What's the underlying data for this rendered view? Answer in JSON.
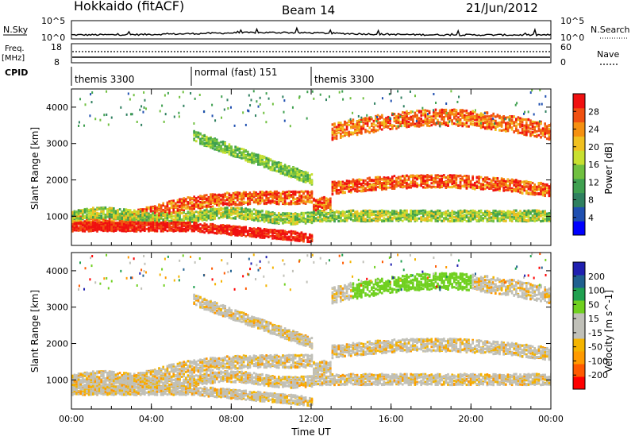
{
  "header": {
    "station": "Hokkaido (fitACF)",
    "beam": "Beam 14",
    "date": "21/Jun/2012"
  },
  "meta_panels": {
    "nsky_label": "N.Sky",
    "nsearch_label": "N.Search",
    "nsky_ticks": [
      "10^5",
      "10^0"
    ],
    "nsky_right_ticks": [
      "10^5",
      "10^0"
    ],
    "freq_label": "Freq.",
    "freq_unit": "[MHz]",
    "freq_ticks": [
      "18",
      "8"
    ],
    "nave_label": "Nave",
    "nave_ticks": [
      "60",
      "0"
    ],
    "cpid_label": "CPID",
    "cpid_segments": [
      {
        "label": "themis 3300",
        "start_hour": 0,
        "end_hour": 6
      },
      {
        "label": "normal (fast) 151",
        "start_hour": 6,
        "end_hour": 12
      },
      {
        "label": "themis 3300",
        "start_hour": 12,
        "end_hour": 24
      }
    ]
  },
  "chart_data": [
    {
      "type": "heatmap",
      "name": "power-panel",
      "ylabel": "Slant Range [km]",
      "xlabel": "",
      "xlim": [
        0,
        24
      ],
      "ylim": [
        200,
        4500
      ],
      "yticks": [
        1000,
        2000,
        3000,
        4000
      ],
      "colorbar": {
        "label": "Power [dB]",
        "ticks": [
          "28",
          "24",
          "20",
          "16",
          "12",
          "8",
          "4"
        ],
        "colors": [
          "#0000ff",
          "#1f4fb0",
          "#2f8060",
          "#3fa050",
          "#70c040",
          "#c8e030",
          "#f0c020",
          "#f59010",
          "#f05010",
          "#f01010"
        ]
      }
    },
    {
      "type": "heatmap",
      "name": "velocity-panel",
      "ylabel": "Slant Range [km]",
      "xlabel": "Time UT",
      "xlim": [
        0,
        24
      ],
      "ylim": [
        200,
        4500
      ],
      "yticks": [
        1000,
        2000,
        3000,
        4000
      ],
      "xticks": [
        "00:00",
        "04:00",
        "08:00",
        "12:00",
        "16:00",
        "20:00",
        "00:00"
      ],
      "colorbar": {
        "label": "Velocity [m s^-1]",
        "ticks": [
          "200",
          "100",
          "50",
          "15",
          "-15",
          "-50",
          "-100",
          "-200"
        ],
        "colors": [
          "#ff0000",
          "#ff5a00",
          "#ff9a00",
          "#f4b400",
          "#c0c0b8",
          "#c0c0b8",
          "#70d020",
          "#20a050",
          "#206090",
          "#2020b0"
        ]
      }
    }
  ]
}
